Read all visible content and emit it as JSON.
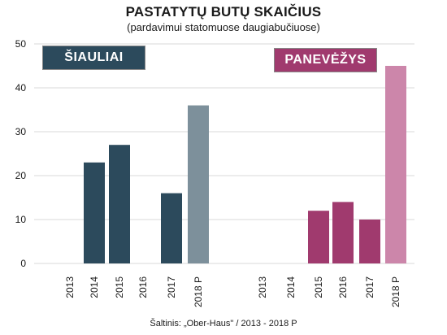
{
  "title": "PASTATYTŲ BUTŲ SKAIČIUS",
  "subtitle": "(pardavimui statomuose daugiabučiuose)",
  "source": "Šaltinis: „Ober-Haus\" / 2013 - 2018 P",
  "chart_data": {
    "type": "bar",
    "ylim": [
      0,
      50
    ],
    "yticks": [
      0,
      10,
      20,
      30,
      40,
      50
    ],
    "grid": true,
    "groups": [
      {
        "name": "ŠIAULIAI",
        "categories": [
          "2013",
          "2014",
          "2015",
          "2016",
          "2017",
          "2018 P"
        ],
        "values": [
          0,
          23,
          27,
          0,
          16,
          36
        ],
        "color": "#2c4a5c",
        "forecast_color": "#7d909b"
      },
      {
        "name": "PANEVĖŽYS",
        "categories": [
          "2013",
          "2014",
          "2015",
          "2016",
          "2017",
          "2018 P"
        ],
        "values": [
          0,
          0,
          12,
          14,
          10,
          45
        ],
        "color": "#a03a6e",
        "forecast_color": "#cc86aa"
      }
    ]
  }
}
